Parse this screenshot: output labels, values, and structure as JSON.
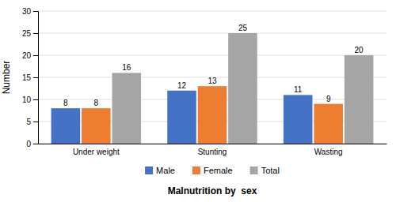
{
  "chart_data": {
    "type": "bar",
    "categories": [
      "Under weight",
      "Stunting",
      "Wasting"
    ],
    "series": [
      {
        "name": "Male",
        "color": "#4472C4",
        "values": [
          8,
          12,
          11
        ]
      },
      {
        "name": "Female",
        "color": "#ED7D31",
        "values": [
          8,
          13,
          9
        ]
      },
      {
        "name": "Total",
        "color": "#A5A5A5",
        "values": [
          16,
          25,
          20
        ]
      }
    ],
    "xlabel": "Malnutrition by  sex",
    "ylabel": "Number",
    "ylim": [
      0,
      30
    ],
    "yticks": [
      0,
      5,
      10,
      15,
      20,
      25,
      30
    ],
    "grid": true,
    "data_labels": true,
    "legend": "bottom"
  }
}
